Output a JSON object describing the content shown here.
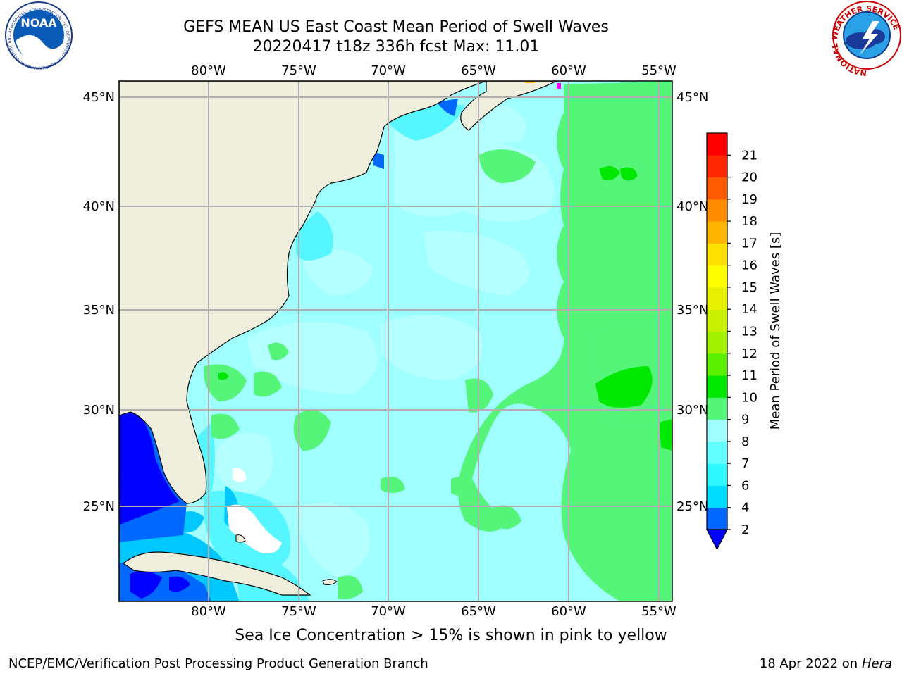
{
  "header": {
    "title": "GEFS MEAN US East Coast Mean Period of Swell Waves",
    "subtitle": "20220417 t18z 336h fcst   Max: 11.01"
  },
  "map": {
    "lon_labels": [
      "80°W",
      "75°W",
      "70°W",
      "65°W",
      "60°W",
      "55°W"
    ],
    "lat_labels": [
      "45°N",
      "40°N",
      "35°N",
      "30°N",
      "25°N"
    ]
  },
  "colorbar": {
    "label": "Mean Period of Swell Waves [s]",
    "ticks": [
      "2",
      "4",
      "6",
      "7",
      "8",
      "9",
      "10",
      "11",
      "12",
      "13",
      "14",
      "15",
      "16",
      "17",
      "18",
      "19",
      "20",
      "21"
    ],
    "colors": [
      "#0068ff",
      "#00dcff",
      "#2ff7ff",
      "#61ffff",
      "#a0ffff",
      "#55f57a",
      "#00e800",
      "#5cf000",
      "#a0f000",
      "#c8f000",
      "#e6f000",
      "#ffff00",
      "#ffe000",
      "#ffb400",
      "#ff8c00",
      "#ff5a00",
      "#ff2800",
      "#ff0000"
    ],
    "underflow_color": "#0000ff"
  },
  "colors": {
    "land": "#efeedc",
    "ocean_base": "#a0ffff",
    "grid": "#b0b0b0"
  },
  "footer": {
    "note": "Sea Ice Concentration > 15% is shown in pink to yellow",
    "left": "NCEP/EMC/Verification Post Processing Product Generation Branch",
    "right_prefix": "18 Apr 2022 on ",
    "right_italic": "Hera"
  },
  "logos": {
    "noaa_text": "NOAA",
    "noaa_ring": "NATIONAL OCEANIC AND ATMOSPHERIC ADMINISTRATION · U.S. DEPARTMENT OF COMMERCE",
    "nws_ring": "NATIONAL WEATHER SERVICE"
  }
}
